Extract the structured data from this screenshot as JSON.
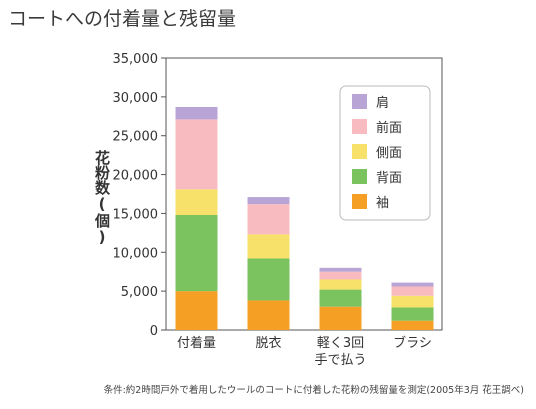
{
  "chart_data": {
    "type": "bar",
    "stacked": true,
    "title": "コートへの付着量と残留量",
    "ylabel": "花粉数(個)",
    "xlabel": "",
    "ylim": [
      0,
      35000
    ],
    "yticks": [
      "35,000",
      "30,000",
      "25,000",
      "20,000",
      "15,000",
      "10,000",
      "5,000",
      "0"
    ],
    "ytick_values": [
      35000,
      30000,
      25000,
      20000,
      15000,
      10000,
      5000,
      0
    ],
    "categories": [
      [
        "付着量"
      ],
      [
        "脱衣"
      ],
      [
        "軽く3回",
        "手で払う"
      ],
      [
        "ブラシ"
      ]
    ],
    "series": [
      {
        "name": "袖",
        "color": "#f5a024",
        "values": [
          5000,
          3800,
          3000,
          1200
        ]
      },
      {
        "name": "背面",
        "color": "#7ac35e",
        "values": [
          9800,
          5400,
          2200,
          1700
        ]
      },
      {
        "name": "側面",
        "color": "#f7e16a",
        "values": [
          3300,
          3100,
          1300,
          1500
        ]
      },
      {
        "name": "前面",
        "color": "#f8bcc0",
        "values": [
          9000,
          3900,
          1000,
          1200
        ]
      },
      {
        "name": "肩",
        "color": "#b9a4d6",
        "values": [
          1600,
          900,
          500,
          500
        ]
      }
    ],
    "legend_order": [
      "肩",
      "前面",
      "側面",
      "背面",
      "袖"
    ],
    "legend_position": "top-right",
    "grid": false
  },
  "footnote": "条件:約2時間戸外で着用したウールのコートに付着した花粉の残留量を測定(2005年3月 花王調べ)"
}
